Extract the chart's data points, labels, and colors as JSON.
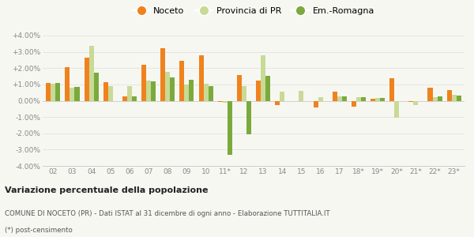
{
  "years": [
    "02",
    "03",
    "04",
    "05",
    "06",
    "07",
    "08",
    "09",
    "10",
    "11*",
    "12",
    "13",
    "14",
    "15",
    "16",
    "17",
    "18*",
    "19*",
    "20*",
    "21*",
    "22*",
    "23*"
  ],
  "noceto": [
    1.1,
    2.05,
    2.65,
    1.15,
    0.25,
    2.2,
    3.2,
    2.45,
    2.8,
    -0.05,
    1.6,
    1.25,
    -0.25,
    0.0,
    -0.4,
    0.55,
    -0.35,
    0.1,
    1.4,
    -0.05,
    0.8,
    0.65
  ],
  "provincia": [
    1.05,
    0.8,
    3.35,
    0.9,
    0.9,
    1.25,
    1.75,
    1.0,
    1.05,
    -0.1,
    0.9,
    2.8,
    0.55,
    0.6,
    0.2,
    0.25,
    0.2,
    0.15,
    -1.05,
    -0.25,
    0.2,
    0.35
  ],
  "emromagna": [
    1.1,
    0.85,
    1.7,
    0.0,
    0.25,
    1.2,
    1.45,
    1.3,
    0.9,
    -3.3,
    -2.05,
    1.55,
    0.0,
    0.0,
    0.0,
    0.25,
    0.2,
    0.15,
    0.0,
    0.0,
    0.25,
    0.3
  ],
  "color_noceto": "#f0821e",
  "color_provincia": "#c8da96",
  "color_emromagna": "#7aaa3c",
  "bg_color": "#f7f7f2",
  "grid_color": "#dddddd",
  "title_bold": "Variazione percentuale della popolazione",
  "subtitle": "COMUNE DI NOCETO (PR) - Dati ISTAT al 31 dicembre di ogni anno - Elaborazione TUTTITALIA.IT",
  "footnote": "(*) post-censimento",
  "ylim": [
    -4.0,
    4.0
  ],
  "yticks": [
    -4.0,
    -3.0,
    -2.0,
    -1.0,
    0.0,
    1.0,
    2.0,
    3.0,
    4.0
  ],
  "bar_width": 0.25
}
